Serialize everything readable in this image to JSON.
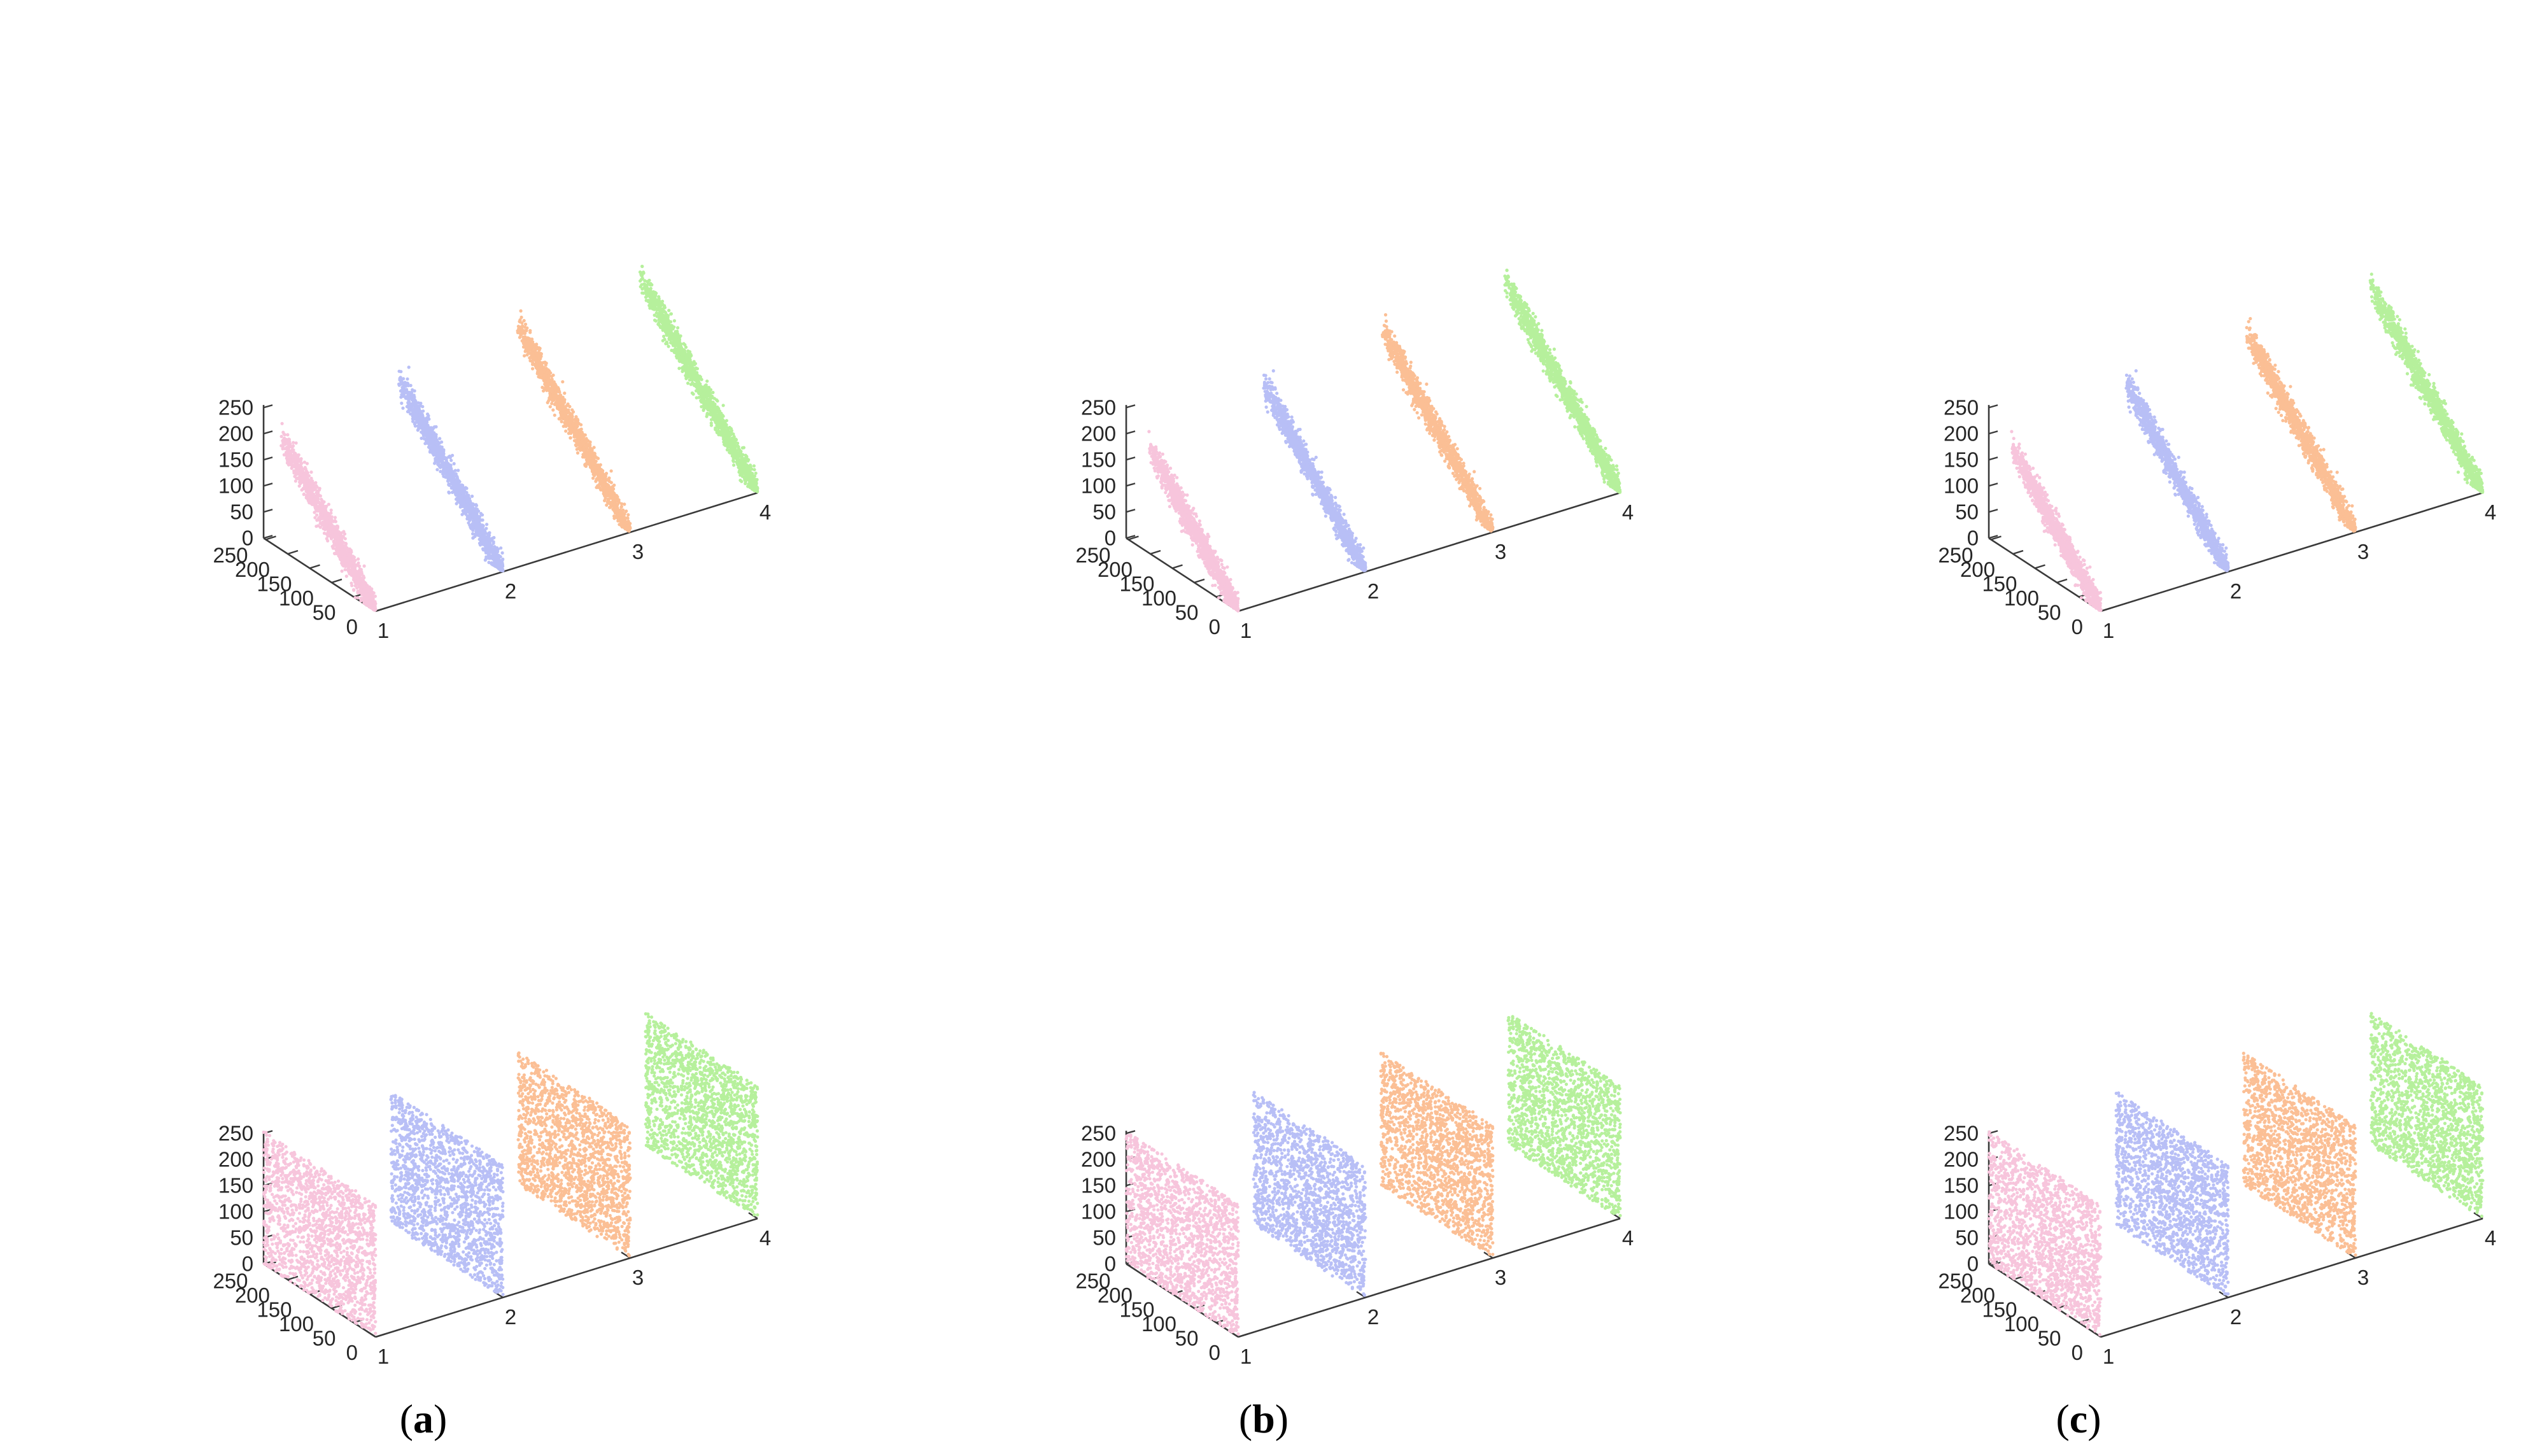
{
  "figure": {
    "panel_labels": [
      "(a)",
      "(b)",
      "(c)"
    ]
  },
  "colors": {
    "channel_1": "#f7c5dc",
    "channel_2": "#b8bff6",
    "channel_3": "#fbbf95",
    "channel_4": "#b6f09c",
    "axis": "#3a3a3a",
    "text": "#262626"
  },
  "chart_data": [
    {
      "type": "scatter",
      "panel": "(a)",
      "row": "top",
      "projection": "3d",
      "distribution": "correlated",
      "x_ticks": [
        "1",
        "2",
        "3",
        "4"
      ],
      "y_ticks": [
        "0",
        "50",
        "100",
        "150",
        "200",
        "250"
      ],
      "z_ticks": [
        "0",
        "50",
        "100",
        "150",
        "200",
        "250"
      ],
      "xlim": [
        1,
        4
      ],
      "ylim": [
        0,
        255
      ],
      "zlim": [
        0,
        255
      ],
      "series": [
        {
          "x": 1,
          "relation": "z ≈ y",
          "spread": 14,
          "y_range": [
            0,
            215
          ]
        },
        {
          "x": 2,
          "relation": "z ≈ y",
          "spread": 14,
          "y_range": [
            0,
            240
          ]
        },
        {
          "x": 3,
          "relation": "z ≈ y",
          "spread": 14,
          "y_range": [
            0,
            260
          ]
        },
        {
          "x": 4,
          "relation": "z ≈ y",
          "spread": 14,
          "y_range": [
            0,
            270
          ]
        }
      ]
    },
    {
      "type": "scatter",
      "panel": "(b)",
      "row": "top",
      "projection": "3d",
      "distribution": "correlated",
      "x_ticks": [
        "1",
        "2",
        "3",
        "4"
      ],
      "y_ticks": [
        "0",
        "50",
        "100",
        "150",
        "200",
        "250"
      ],
      "z_ticks": [
        "0",
        "50",
        "100",
        "150",
        "200",
        "250"
      ],
      "xlim": [
        1,
        4
      ],
      "ylim": [
        0,
        255
      ],
      "zlim": [
        0,
        255
      ],
      "series": [
        {
          "x": 1,
          "relation": "z ≈ y",
          "spread": 14,
          "y_range": [
            0,
            205
          ]
        },
        {
          "x": 2,
          "relation": "z ≈ y",
          "spread": 14,
          "y_range": [
            0,
            235
          ]
        },
        {
          "x": 3,
          "relation": "z ≈ y",
          "spread": 14,
          "y_range": [
            0,
            255
          ]
        },
        {
          "x": 4,
          "relation": "z ≈ y",
          "spread": 14,
          "y_range": [
            0,
            265
          ]
        }
      ]
    },
    {
      "type": "scatter",
      "panel": "(c)",
      "row": "top",
      "projection": "3d",
      "distribution": "correlated",
      "x_ticks": [
        "1",
        "2",
        "3",
        "4"
      ],
      "y_ticks": [
        "0",
        "50",
        "100",
        "150",
        "200",
        "250"
      ],
      "z_ticks": [
        "0",
        "50",
        "100",
        "150",
        "200",
        "250"
      ],
      "xlim": [
        1,
        4
      ],
      "ylim": [
        0,
        255
      ],
      "zlim": [
        0,
        255
      ],
      "series": [
        {
          "x": 1,
          "relation": "z ≈ y",
          "spread": 14,
          "y_range": [
            0,
            205
          ]
        },
        {
          "x": 2,
          "relation": "z ≈ y",
          "spread": 14,
          "y_range": [
            0,
            235
          ]
        },
        {
          "x": 3,
          "relation": "z ≈ y",
          "spread": 14,
          "y_range": [
            0,
            250
          ]
        },
        {
          "x": 4,
          "relation": "z ≈ y",
          "spread": 14,
          "y_range": [
            0,
            260
          ]
        }
      ]
    },
    {
      "type": "scatter",
      "panel": "(a)",
      "row": "bottom",
      "projection": "3d",
      "distribution": "uniform",
      "x_ticks": [
        "1",
        "2",
        "3",
        "4"
      ],
      "y_ticks": [
        "0",
        "50",
        "100",
        "150",
        "200",
        "250"
      ],
      "z_ticks": [
        "0",
        "50",
        "100",
        "150",
        "200",
        "250"
      ],
      "xlim": [
        1,
        4
      ],
      "ylim": [
        0,
        255
      ],
      "zlim": [
        0,
        255
      ],
      "series": [
        {
          "x": 1,
          "y_range": [
            0,
            255
          ],
          "z_range": [
            0,
            255
          ]
        },
        {
          "x": 2,
          "y_range": [
            0,
            255
          ],
          "z_range": [
            0,
            255
          ]
        },
        {
          "x": 3,
          "y_range": [
            0,
            255
          ],
          "z_range": [
            0,
            255
          ]
        },
        {
          "x": 4,
          "y_range": [
            0,
            255
          ],
          "z_range": [
            0,
            255
          ]
        }
      ]
    },
    {
      "type": "scatter",
      "panel": "(b)",
      "row": "bottom",
      "projection": "3d",
      "distribution": "uniform",
      "x_ticks": [
        "1",
        "2",
        "3",
        "4"
      ],
      "y_ticks": [
        "0",
        "50",
        "100",
        "150",
        "200",
        "250"
      ],
      "z_ticks": [
        "0",
        "50",
        "100",
        "150",
        "200",
        "250"
      ],
      "xlim": [
        1,
        4
      ],
      "ylim": [
        0,
        255
      ],
      "zlim": [
        0,
        255
      ],
      "series": [
        {
          "x": 1,
          "y_range": [
            0,
            255
          ],
          "z_range": [
            0,
            255
          ]
        },
        {
          "x": 2,
          "y_range": [
            0,
            255
          ],
          "z_range": [
            0,
            255
          ]
        },
        {
          "x": 3,
          "y_range": [
            0,
            255
          ],
          "z_range": [
            0,
            255
          ]
        },
        {
          "x": 4,
          "y_range": [
            0,
            255
          ],
          "z_range": [
            0,
            255
          ]
        }
      ]
    },
    {
      "type": "scatter",
      "panel": "(c)",
      "row": "bottom",
      "projection": "3d",
      "distribution": "uniform",
      "x_ticks": [
        "1",
        "2",
        "3",
        "4"
      ],
      "y_ticks": [
        "0",
        "50",
        "100",
        "150",
        "200",
        "250"
      ],
      "z_ticks": [
        "0",
        "50",
        "100",
        "150",
        "200",
        "250"
      ],
      "xlim": [
        1,
        4
      ],
      "ylim": [
        0,
        255
      ],
      "zlim": [
        0,
        255
      ],
      "series": [
        {
          "x": 1,
          "y_range": [
            0,
            255
          ],
          "z_range": [
            0,
            255
          ]
        },
        {
          "x": 2,
          "y_range": [
            0,
            255
          ],
          "z_range": [
            0,
            255
          ]
        },
        {
          "x": 3,
          "y_range": [
            0,
            255
          ],
          "z_range": [
            0,
            255
          ]
        },
        {
          "x": 4,
          "y_range": [
            0,
            255
          ],
          "z_range": [
            0,
            255
          ]
        }
      ]
    }
  ]
}
